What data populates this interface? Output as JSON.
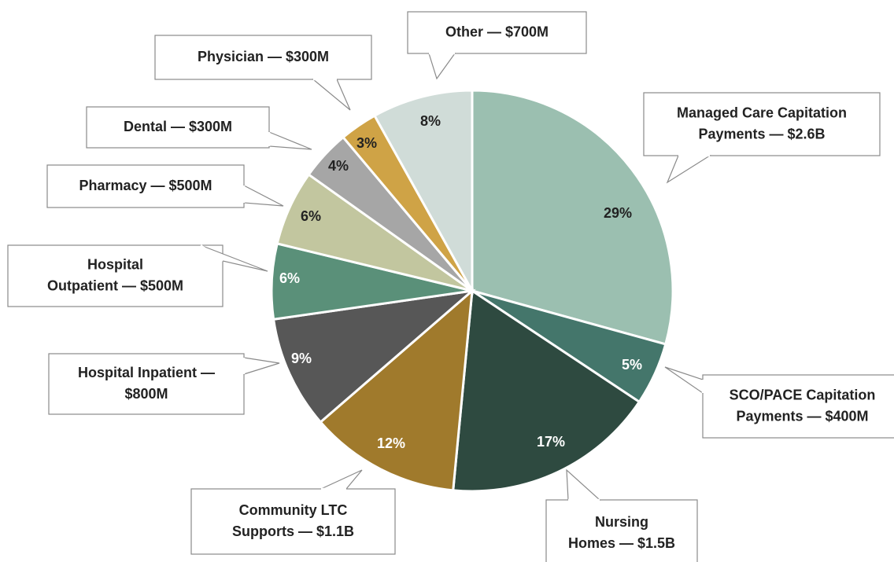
{
  "chart_data": {
    "type": "pie",
    "categories": [
      [
        "Managed Care Capitation",
        "Payments — $2.6B"
      ],
      [
        "SCO/PACE Capitation",
        "Payments — $400M"
      ],
      [
        "Nursing",
        "Homes — $1.5B"
      ],
      [
        "Community LTC",
        "Supports — $1.1B"
      ],
      [
        "Hospital Inpatient —",
        "$800M"
      ],
      [
        "Hospital",
        "Outpatient — $500M"
      ],
      [
        "Pharmacy — $500M"
      ],
      [
        "Dental — $300M"
      ],
      [
        "Physician — $300M"
      ],
      [
        "Other —  $700M"
      ]
    ],
    "values": [
      29,
      5,
      17,
      12,
      9,
      6,
      6,
      4,
      3,
      8
    ],
    "value_labels": [
      "29%",
      "5%",
      "17%",
      "12%",
      "9%",
      "6%",
      "6%",
      "4%",
      "3%",
      "8%"
    ],
    "colors": [
      "#9bbfb0",
      "#44766b",
      "#2e4a40",
      "#a07a2c",
      "#575757",
      "#5a9079",
      "#c2c69f",
      "#a6a6a6",
      "#cfa346",
      "#d0dcd8"
    ]
  }
}
